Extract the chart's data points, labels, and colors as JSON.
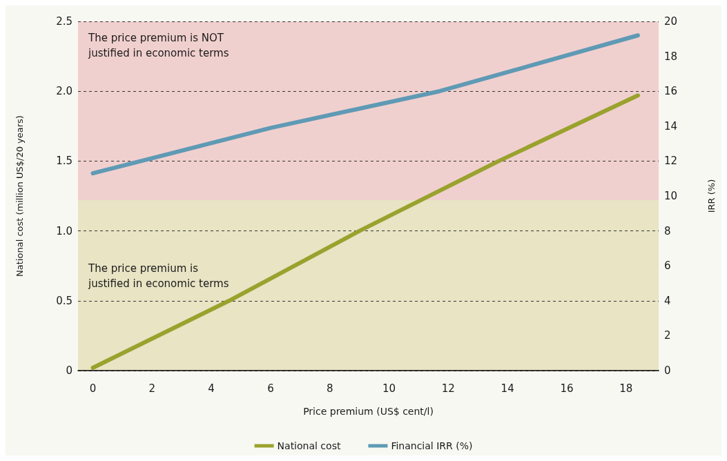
{
  "chart_data": {
    "type": "line",
    "xlabel": "Price premium (US$ cent/l)",
    "ylabel": "National cost (million US$/20 years)",
    "y2label": "IRR (%)",
    "xlim": [
      -0.5,
      19.1
    ],
    "xticks": [
      0,
      2,
      4,
      6,
      8,
      10,
      12,
      14,
      16,
      18
    ],
    "ylim": [
      0,
      2.5
    ],
    "yticks": [
      0,
      {
        "value": 0.5,
        "label": "0.5"
      },
      {
        "value": 1,
        "label": "1.0"
      },
      {
        "value": 1.5,
        "label": "1.5"
      },
      {
        "value": 2,
        "label": "2.0"
      },
      {
        "value": 2.5,
        "label": "2.5"
      }
    ],
    "y2lim": [
      0,
      20
    ],
    "y2ticks": [
      0,
      2,
      4,
      6,
      8,
      10,
      12,
      14,
      16,
      18,
      20
    ],
    "series": [
      {
        "name": "National cost",
        "color": "#9aa22e",
        "x": [
          0,
          4.6,
          9,
          13.7,
          18.4
        ],
        "values": [
          0.02,
          0.5,
          1.0,
          1.5,
          1.97
        ]
      },
      {
        "name": "Financial IRR (%)",
        "color": "#5f9ab5",
        "axis": "y2",
        "x": [
          0,
          6,
          11.7,
          18.4
        ],
        "values": [
          11.3,
          13.9,
          16.0,
          19.2
        ]
      }
    ],
    "bands": [
      {
        "axis": "y",
        "from": 0,
        "to": 1.22,
        "label": "The price premium is\njustified in economic terms",
        "color": "#e8e4c4"
      },
      {
        "axis": "y",
        "from": 1.22,
        "to": 2.5,
        "label": "The price premium is NOT\njustified in economic terms",
        "color": "#f0d0ce"
      }
    ],
    "grid": "y",
    "line_style": "solid",
    "marker": "none",
    "legend": "bottom"
  }
}
